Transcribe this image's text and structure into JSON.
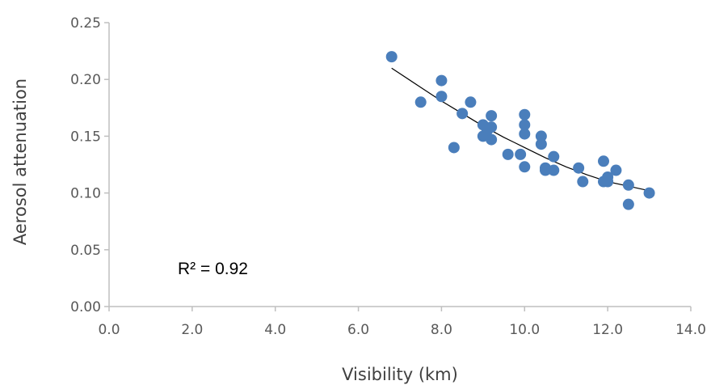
{
  "chart_data": {
    "type": "scatter",
    "xlabel": "Visibility (km)",
    "ylabel": "Aerosol attenuation",
    "xlim": [
      0,
      14
    ],
    "ylim": [
      0,
      0.25
    ],
    "x_ticks": [
      "0.0",
      "2.0",
      "4.0",
      "6.0",
      "8.0",
      "10.0",
      "12.0",
      "14.0"
    ],
    "y_ticks": [
      "0.00",
      "0.05",
      "0.10",
      "0.15",
      "0.20",
      "0.25"
    ],
    "grid": false,
    "legend": "none",
    "annotation": "R² = 0.92",
    "marker_color": "#4a7ebb",
    "trendline_color": "#000000",
    "points": [
      {
        "x": 6.8,
        "y": 0.22
      },
      {
        "x": 7.5,
        "y": 0.18
      },
      {
        "x": 8.0,
        "y": 0.199
      },
      {
        "x": 8.0,
        "y": 0.185
      },
      {
        "x": 8.3,
        "y": 0.14
      },
      {
        "x": 8.5,
        "y": 0.17
      },
      {
        "x": 8.7,
        "y": 0.18
      },
      {
        "x": 9.0,
        "y": 0.16
      },
      {
        "x": 9.0,
        "y": 0.15
      },
      {
        "x": 9.1,
        "y": 0.155
      },
      {
        "x": 9.2,
        "y": 0.168
      },
      {
        "x": 9.2,
        "y": 0.158
      },
      {
        "x": 9.2,
        "y": 0.147
      },
      {
        "x": 9.6,
        "y": 0.134
      },
      {
        "x": 9.9,
        "y": 0.134
      },
      {
        "x": 10.0,
        "y": 0.169
      },
      {
        "x": 10.0,
        "y": 0.16
      },
      {
        "x": 10.0,
        "y": 0.152
      },
      {
        "x": 10.0,
        "y": 0.123
      },
      {
        "x": 10.4,
        "y": 0.15
      },
      {
        "x": 10.4,
        "y": 0.143
      },
      {
        "x": 10.5,
        "y": 0.122
      },
      {
        "x": 10.5,
        "y": 0.12
      },
      {
        "x": 10.7,
        "y": 0.132
      },
      {
        "x": 10.7,
        "y": 0.12
      },
      {
        "x": 11.3,
        "y": 0.122
      },
      {
        "x": 11.4,
        "y": 0.11
      },
      {
        "x": 11.9,
        "y": 0.128
      },
      {
        "x": 11.9,
        "y": 0.11
      },
      {
        "x": 12.0,
        "y": 0.114
      },
      {
        "x": 12.0,
        "y": 0.11
      },
      {
        "x": 12.2,
        "y": 0.12
      },
      {
        "x": 12.5,
        "y": 0.107
      },
      {
        "x": 12.5,
        "y": 0.09
      },
      {
        "x": 13.0,
        "y": 0.1
      }
    ],
    "trendline": [
      {
        "x": 6.8,
        "y": 0.21
      },
      {
        "x": 7.5,
        "y": 0.193
      },
      {
        "x": 8.0,
        "y": 0.181
      },
      {
        "x": 8.5,
        "y": 0.17
      },
      {
        "x": 9.0,
        "y": 0.159
      },
      {
        "x": 9.5,
        "y": 0.149
      },
      {
        "x": 10.0,
        "y": 0.14
      },
      {
        "x": 10.5,
        "y": 0.131
      },
      {
        "x": 11.0,
        "y": 0.123
      },
      {
        "x": 11.5,
        "y": 0.116
      },
      {
        "x": 12.0,
        "y": 0.11
      },
      {
        "x": 12.5,
        "y": 0.106
      },
      {
        "x": 13.0,
        "y": 0.102
      }
    ]
  }
}
